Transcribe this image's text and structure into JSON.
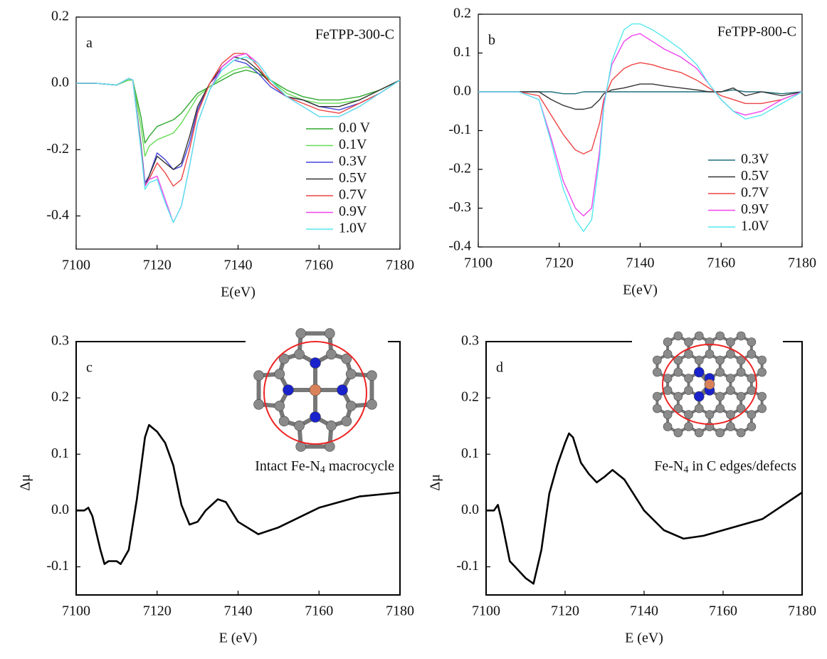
{
  "chart_data": [
    {
      "type": "line",
      "panel_label": "a",
      "sample_label": "FeTPP-300-C",
      "xlabel": "E(eV)",
      "xlim": [
        7100,
        7180
      ],
      "ylim": [
        -0.5,
        0.2
      ],
      "xticks": [
        7100,
        7120,
        7140,
        7160,
        7180
      ],
      "yticks": [
        -0.4,
        -0.2,
        {
          "value": 0,
          "label": "0.0"
        },
        0.2
      ],
      "legend": "lower right",
      "x": [
        7100,
        7105,
        7110,
        7113,
        7114,
        7116,
        7117,
        7118,
        7120,
        7122,
        7124,
        7126,
        7128,
        7130,
        7133,
        7136,
        7139,
        7142,
        7145,
        7148,
        7152,
        7156,
        7160,
        7165,
        7170,
        7175,
        7180
      ],
      "series": [
        {
          "name": "0.0 V",
          "color": "#2ea82e",
          "values": [
            0,
            0,
            -0.005,
            0.01,
            0.01,
            -0.1,
            -0.18,
            -0.16,
            -0.13,
            -0.12,
            -0.11,
            -0.09,
            -0.06,
            -0.03,
            -0.01,
            0.01,
            0.03,
            0.04,
            0.03,
            0.01,
            -0.02,
            -0.04,
            -0.05,
            -0.05,
            -0.04,
            -0.02,
            0.01
          ]
        },
        {
          "name": "0.1V",
          "color": "#66dd55",
          "values": [
            0,
            0,
            -0.005,
            0.01,
            0.01,
            -0.13,
            -0.22,
            -0.19,
            -0.17,
            -0.16,
            -0.15,
            -0.12,
            -0.08,
            -0.04,
            -0.01,
            0.02,
            0.04,
            0.05,
            0.04,
            0.01,
            -0.03,
            -0.05,
            -0.06,
            -0.06,
            -0.05,
            -0.02,
            0.01
          ]
        },
        {
          "name": "0.3V",
          "color": "#4444dd",
          "values": [
            0,
            0,
            -0.005,
            0.015,
            0.01,
            -0.18,
            -0.3,
            -0.28,
            -0.21,
            -0.23,
            -0.26,
            -0.25,
            -0.18,
            -0.08,
            0,
            0.04,
            0.07,
            0.06,
            0.03,
            -0.01,
            -0.04,
            -0.05,
            -0.07,
            -0.08,
            -0.06,
            -0.03,
            0.01
          ]
        },
        {
          "name": "0.5V",
          "color": "#333333",
          "values": [
            0,
            0,
            -0.005,
            0.015,
            0.01,
            -0.19,
            -0.31,
            -0.28,
            -0.22,
            -0.24,
            -0.26,
            -0.24,
            -0.16,
            -0.07,
            0,
            0.05,
            0.08,
            0.07,
            0.04,
            0,
            -0.04,
            -0.05,
            -0.07,
            -0.07,
            -0.05,
            -0.02,
            0.01
          ]
        },
        {
          "name": "0.7V",
          "color": "#ee4444",
          "values": [
            0,
            0,
            -0.005,
            0.015,
            0.01,
            -0.19,
            -0.31,
            -0.29,
            -0.24,
            -0.27,
            -0.31,
            -0.29,
            -0.2,
            -0.09,
            0,
            0.06,
            0.09,
            0.09,
            0.05,
            0,
            -0.04,
            -0.06,
            -0.08,
            -0.09,
            -0.06,
            -0.03,
            0.01
          ]
        },
        {
          "name": "0.9V",
          "color": "#ee44ee",
          "values": [
            0,
            0,
            -0.005,
            0.015,
            0.01,
            -0.2,
            -0.31,
            -0.29,
            -0.28,
            -0.35,
            -0.42,
            -0.37,
            -0.25,
            -0.12,
            -0.02,
            0.05,
            0.08,
            0.09,
            0.06,
            0.01,
            -0.04,
            -0.07,
            -0.1,
            -0.1,
            -0.07,
            -0.03,
            0.01
          ]
        },
        {
          "name": "1.0V",
          "color": "#55e8ee",
          "values": [
            0,
            0,
            -0.005,
            0.015,
            0.01,
            -0.2,
            -0.32,
            -0.3,
            -0.29,
            -0.36,
            -0.42,
            -0.37,
            -0.25,
            -0.12,
            -0.02,
            0.04,
            0.07,
            0.08,
            0.06,
            0.01,
            -0.04,
            -0.07,
            -0.1,
            -0.1,
            -0.07,
            -0.03,
            0.01
          ]
        }
      ]
    },
    {
      "type": "line",
      "panel_label": "b",
      "sample_label": "FeTPP-800-C",
      "xlabel": "E(eV)",
      "xlim": [
        7100,
        7180
      ],
      "ylim": [
        -0.4,
        0.2
      ],
      "xticks": [
        7100,
        7120,
        7140,
        7160,
        7180
      ],
      "yticks": [
        -0.4,
        -0.3,
        -0.2,
        -0.1,
        {
          "value": 0,
          "label": "0.0"
        },
        0.1,
        0.2
      ],
      "legend": "lower right",
      "x": [
        7100,
        7105,
        7110,
        7115,
        7118,
        7121,
        7124,
        7126,
        7128,
        7130,
        7131,
        7133,
        7136,
        7138,
        7140,
        7143,
        7146,
        7150,
        7154,
        7157,
        7160,
        7163,
        7166,
        7170,
        7175,
        7180
      ],
      "series": [
        {
          "name": "0.3V",
          "color": "#1f6f7a",
          "values": [
            0,
            0,
            0,
            0,
            0,
            -0.005,
            -0.005,
            0,
            0,
            0,
            0,
            0,
            0,
            0,
            0,
            0,
            0,
            0,
            0,
            0,
            0,
            0.005,
            0,
            0,
            -0.005,
            0
          ]
        },
        {
          "name": "0.5V",
          "color": "#333333",
          "values": [
            0,
            0,
            0,
            0,
            -0.02,
            -0.035,
            -0.045,
            -0.045,
            -0.04,
            -0.02,
            -0.005,
            0.005,
            0.01,
            0.015,
            0.02,
            0.02,
            0.015,
            0.01,
            0.005,
            0,
            0,
            0.01,
            -0.01,
            0,
            -0.01,
            0
          ]
        },
        {
          "name": "0.7V",
          "color": "#ee4444",
          "values": [
            0,
            0,
            0,
            -0.01,
            -0.06,
            -0.11,
            -0.15,
            -0.16,
            -0.15,
            -0.08,
            -0.02,
            0.03,
            0.06,
            0.07,
            0.075,
            0.07,
            0.06,
            0.05,
            0.03,
            0.01,
            -0.01,
            -0.02,
            -0.03,
            -0.03,
            -0.02,
            0
          ]
        },
        {
          "name": "0.9V",
          "color": "#ee44ee",
          "values": [
            0,
            0,
            0,
            -0.02,
            -0.12,
            -0.23,
            -0.3,
            -0.32,
            -0.3,
            -0.15,
            -0.03,
            0.07,
            0.13,
            0.145,
            0.15,
            0.13,
            0.11,
            0.09,
            0.06,
            0.02,
            -0.02,
            -0.05,
            -0.06,
            -0.05,
            -0.02,
            0
          ]
        },
        {
          "name": "1.0V",
          "color": "#55e8ee",
          "values": [
            0,
            0,
            0,
            -0.02,
            -0.13,
            -0.25,
            -0.33,
            -0.36,
            -0.33,
            -0.17,
            -0.04,
            0.08,
            0.16,
            0.175,
            0.175,
            0.16,
            0.14,
            0.11,
            0.07,
            0.02,
            -0.02,
            -0.05,
            -0.07,
            -0.06,
            -0.03,
            0
          ]
        }
      ]
    },
    {
      "type": "line",
      "panel_label": "c",
      "xlabel": "E (eV)",
      "ylabel": "Δμ",
      "annotation_parts": [
        "Intact Fe-N",
        "4",
        " macrocycle"
      ],
      "xlim": [
        7100,
        7180
      ],
      "ylim": [
        -0.15,
        0.3
      ],
      "xticks": [
        7100,
        7120,
        7140,
        7160,
        7180
      ],
      "yticks": [
        -0.1,
        {
          "value": 0,
          "label": "0.0"
        },
        0.1,
        0.2,
        0.3
      ],
      "color": "#000000",
      "x": [
        7100,
        7102,
        7103,
        7104,
        7106,
        7107,
        7108,
        7110,
        7111,
        7113,
        7115,
        7117,
        7118,
        7120,
        7122,
        7124,
        7126,
        7128,
        7130,
        7132,
        7135,
        7137,
        7140,
        7145,
        7150,
        7160,
        7170,
        7180
      ],
      "values": [
        0,
        0,
        0.005,
        -0.01,
        -0.07,
        -0.095,
        -0.09,
        -0.09,
        -0.095,
        -0.07,
        0.02,
        0.13,
        0.152,
        0.14,
        0.12,
        0.08,
        0.01,
        -0.025,
        -0.02,
        0,
        0.02,
        0.015,
        -0.02,
        -0.042,
        -0.03,
        0.005,
        0.025,
        0.032
      ]
    },
    {
      "type": "line",
      "panel_label": "d",
      "xlabel": "E (eV)",
      "ylabel": "Δμ",
      "annotation_parts": [
        "Fe-N",
        "4",
        " in C edges/defects"
      ],
      "xlim": [
        7100,
        7180
      ],
      "ylim": [
        -0.15,
        0.3
      ],
      "xticks": [
        7100,
        7120,
        7140,
        7160,
        7180
      ],
      "yticks": [
        -0.1,
        {
          "value": 0,
          "label": "0.0"
        },
        0.1,
        0.2,
        0.3
      ],
      "color": "#000000",
      "x": [
        7100,
        7102,
        7103,
        7104,
        7106,
        7108,
        7110,
        7112,
        7114,
        7116,
        7118,
        7120,
        7121,
        7122,
        7124,
        7126,
        7128,
        7130,
        7132,
        7135,
        7140,
        7145,
        7150,
        7155,
        7160,
        7170,
        7180
      ],
      "values": [
        0,
        0,
        0.01,
        -0.02,
        -0.09,
        -0.105,
        -0.12,
        -0.13,
        -0.07,
        0.03,
        0.08,
        0.12,
        0.137,
        0.13,
        0.085,
        0.065,
        0.05,
        0.06,
        0.072,
        0.055,
        0,
        -0.035,
        -0.05,
        -0.045,
        -0.035,
        -0.015,
        0.032
      ]
    }
  ]
}
